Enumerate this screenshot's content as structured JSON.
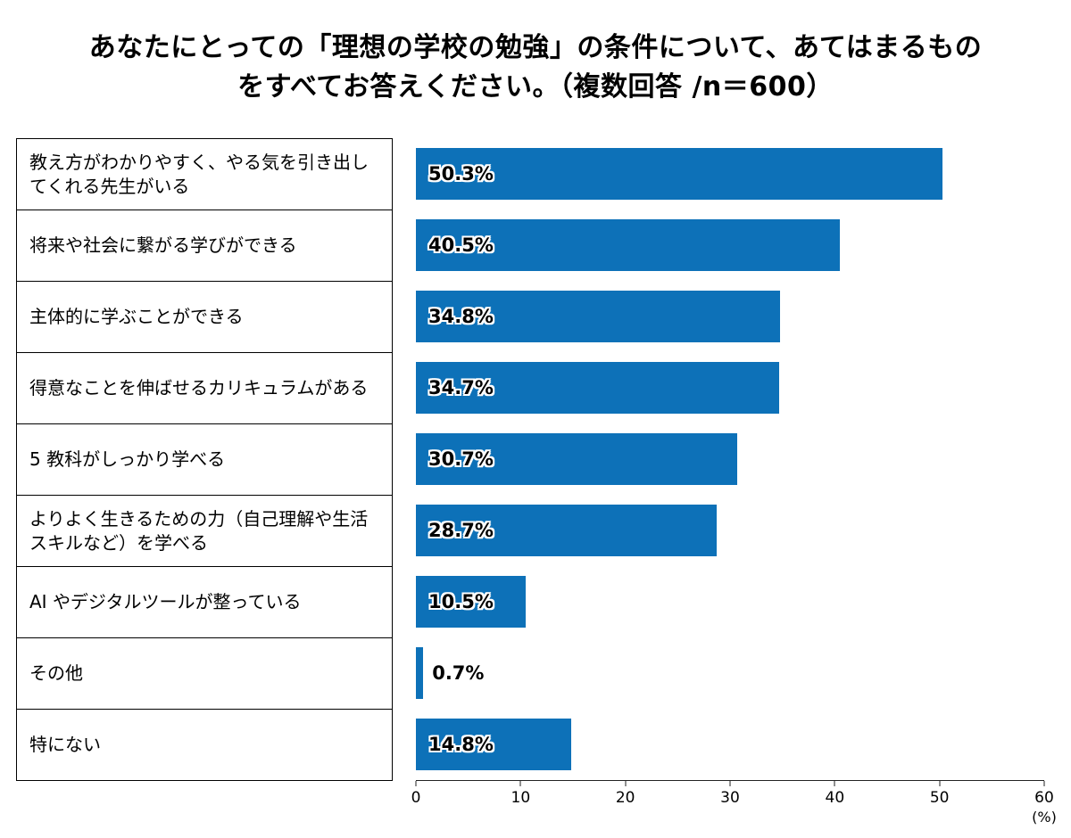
{
  "page": {
    "title_line1": "あなたにとっての「理想の学校の勉強」の条件について、あてはまるもの",
    "title_line2": "をすべてお答えください。（複数回答 /n＝600）"
  },
  "chart_data": {
    "type": "bar",
    "orientation": "horizontal",
    "title": "あなたにとっての「理想の学校の勉強」の条件について、あてはまるものをすべてお答えください。（複数回答 /n＝600）",
    "categories": [
      "教え方がわかりやすく、やる気を引き出してくれる先生がいる",
      "将来や社会に繋がる学びができる",
      "主体的に学ぶことができる",
      "得意なことを伸ばせるカリキュラムがある",
      "5 教科がしっかり学べる",
      "よりよく生きるための力（自己理解や生活スキルなど）を学べる",
      "AI やデジタルツールが整っている",
      "その他",
      "特にない"
    ],
    "values": [
      50.3,
      40.5,
      34.8,
      34.7,
      30.7,
      28.7,
      10.5,
      0.7,
      14.8
    ],
    "value_labels": [
      "50.3%",
      "40.5%",
      "34.8%",
      "34.7%",
      "30.7%",
      "28.7%",
      "10.5%",
      "0.7%",
      "14.8%"
    ],
    "xlim": [
      0,
      60
    ],
    "xticks": [
      0,
      10,
      20,
      30,
      40,
      50,
      60
    ],
    "x_unit": "(%)",
    "bar_color": "#0d71b8",
    "grid": false,
    "legend": false
  }
}
